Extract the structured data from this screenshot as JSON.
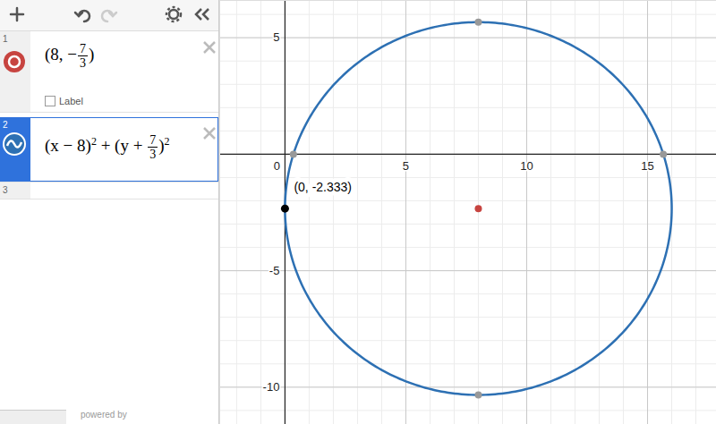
{
  "panel": {
    "expressions": [
      {
        "index": 1,
        "parts": [
          {
            "t": "(8, −"
          },
          {
            "frac": [
              "7",
              "3"
            ]
          },
          {
            "t": ")"
          }
        ],
        "checkbox": "Label"
      },
      {
        "index": 2,
        "parts": [
          {
            "t": "(x − 8)"
          },
          {
            "sup": "2"
          },
          {
            "t": " + (y + "
          },
          {
            "frac": [
              "7",
              "3"
            ]
          },
          {
            "t": ")"
          },
          {
            "sup": "2"
          }
        ]
      },
      {
        "index": 3,
        "parts": []
      }
    ],
    "footer": "powered by"
  },
  "chart_data": {
    "type": "scatter",
    "xlim": [
      -2.7,
      17.85
    ],
    "ylim": [
      -11.6,
      6.6
    ],
    "xticks": [
      0,
      5,
      10,
      15
    ],
    "yticks": [
      -10,
      -5,
      5
    ],
    "grid": true,
    "curves": [
      {
        "type": "circle",
        "center": [
          8,
          -2.333
        ],
        "radius": 8,
        "color": "#2d70b3"
      }
    ],
    "series": [
      {
        "color": "#c74440",
        "x": [
          8
        ],
        "y": [
          -2.333
        ]
      },
      {
        "color": "#999999",
        "x": [
          8,
          8,
          0.348,
          15.652
        ],
        "y": [
          5.667,
          -10.333,
          0,
          0
        ]
      },
      {
        "color": "#000000",
        "x": [
          0
        ],
        "y": [
          -2.333
        ],
        "labels": [
          "(0, -2.333)"
        ]
      }
    ]
  }
}
